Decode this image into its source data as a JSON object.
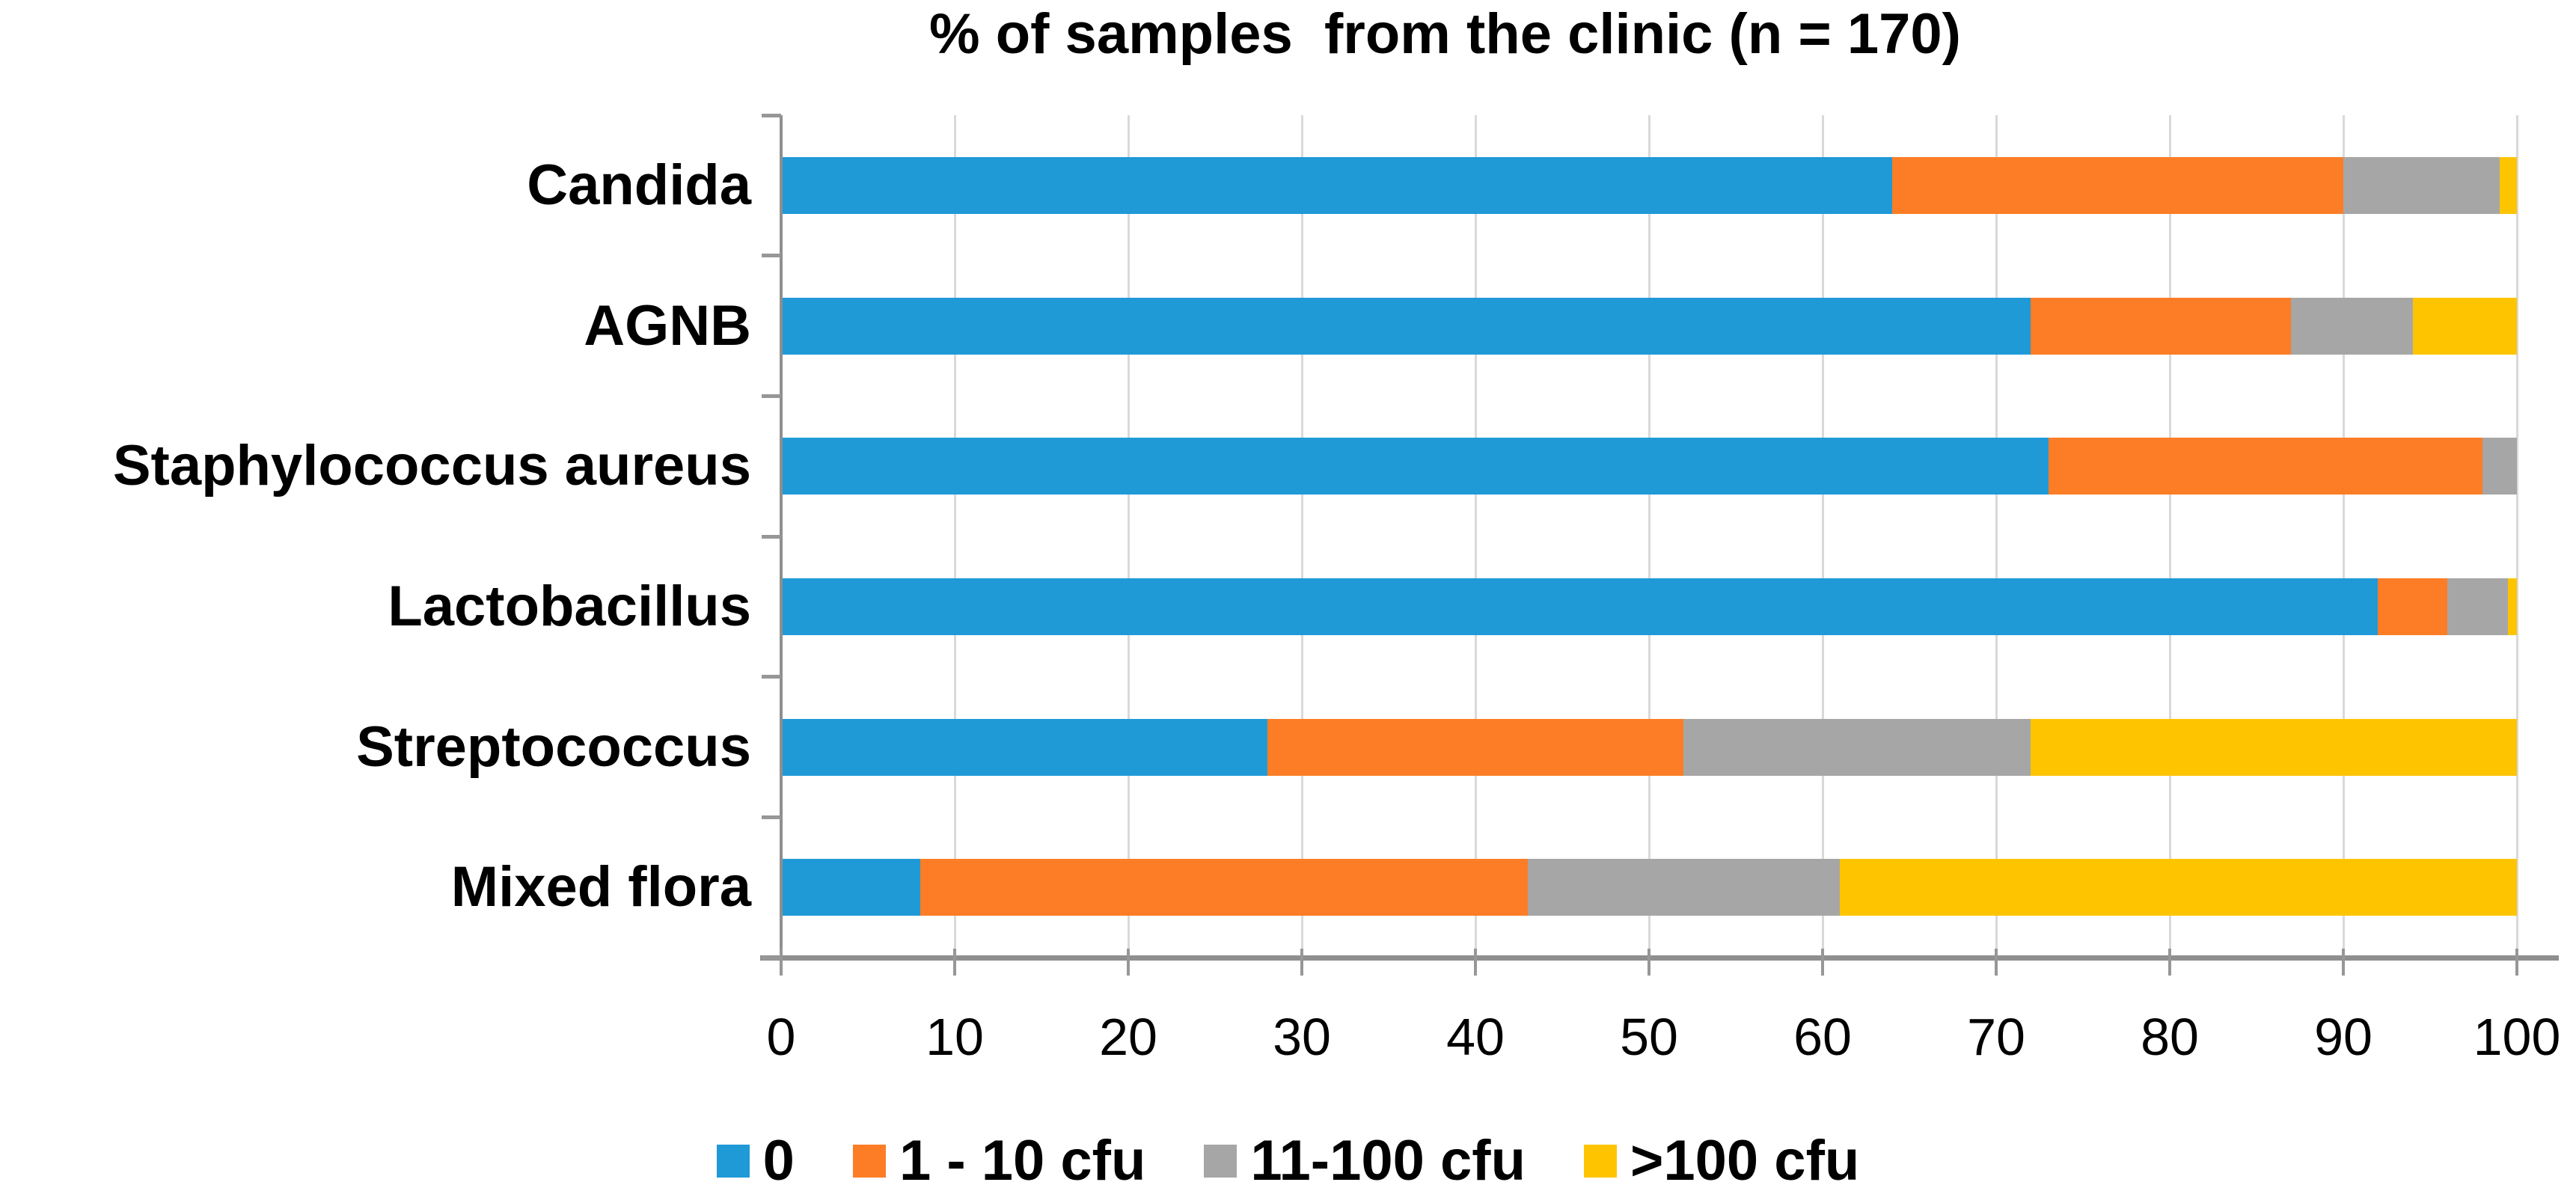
{
  "chart_data": {
    "type": "bar",
    "orientation": "horizontal-stacked",
    "title": "% of samples  from the clinic (n = 170)",
    "categories": [
      "Candida",
      "AGNB",
      "Staphylococcus aureus",
      "Lactobacillus",
      "Streptococcus",
      "Mixed flora"
    ],
    "series": [
      {
        "name": "0",
        "color": "#1F9AD7",
        "values": [
          64,
          72,
          73,
          92,
          28,
          8
        ]
      },
      {
        "name": "1 - 10 cfu",
        "color": "#FC7D26",
        "values": [
          26,
          15,
          25,
          4,
          24,
          35
        ]
      },
      {
        "name": "11-100 cfu",
        "color": "#A6A6A6",
        "values": [
          9,
          7,
          2,
          3.5,
          20,
          18
        ]
      },
      {
        "name": ">100 cfu",
        "color": "#FFC400",
        "values": [
          1,
          6,
          0,
          0.5,
          28,
          39
        ]
      }
    ],
    "x_axis": {
      "min": 0,
      "max": 100,
      "tick_step": 10,
      "tick_labels": [
        "0",
        "10",
        "20",
        "30",
        "40",
        "50",
        "60",
        "70",
        "80",
        "90",
        "100"
      ]
    },
    "legend_position": "bottom",
    "grid": true,
    "colors": {
      "gridline": "#D9D9D9",
      "axis_line": "#8F8F8F",
      "tick": "#979797",
      "background": "#FFFFFF",
      "text": "#000000"
    }
  }
}
